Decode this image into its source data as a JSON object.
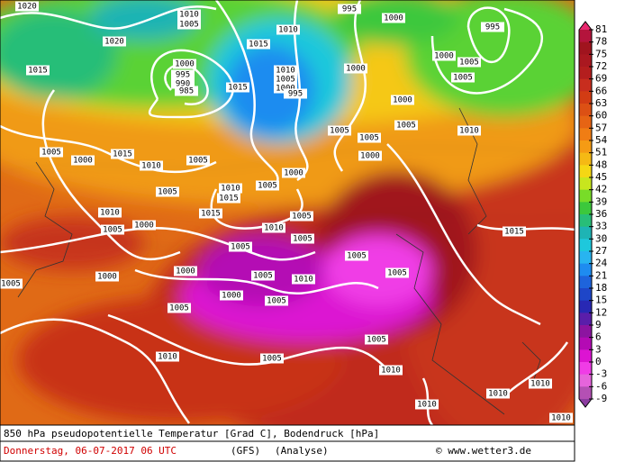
{
  "colorbar": {
    "levels": [
      81,
      78,
      75,
      72,
      69,
      66,
      63,
      60,
      57,
      54,
      51,
      48,
      45,
      42,
      39,
      36,
      33,
      30,
      27,
      24,
      21,
      18,
      15,
      12,
      9,
      6,
      3,
      0,
      -3,
      -6,
      -9
    ],
    "colors": [
      "#b4143c",
      "#a0141e",
      "#aa1820",
      "#b41e1e",
      "#c82d1e",
      "#d23c14",
      "#dc5014",
      "#e66414",
      "#f07d14",
      "#f59b14",
      "#f5b914",
      "#f5d714",
      "#c8e61e",
      "#78dc28",
      "#3cc83c",
      "#28be78",
      "#1eb4b4",
      "#1ec8dc",
      "#28b4f0",
      "#1e8cf0",
      "#1e64dc",
      "#1e46c8",
      "#2828b4",
      "#5a1eaa",
      "#8c14a0",
      "#b40ab4",
      "#dc14d2",
      "#f03ce6",
      "#e664dc",
      "#b450b4"
    ],
    "top_color": "#e8286e",
    "bottom_color": "#8c3ca0"
  },
  "isobar_labels": [
    1020,
    1010,
    1005,
    1010,
    995,
    1000,
    995,
    1020,
    1015,
    1015,
    1000,
    995,
    990,
    985,
    1015,
    1010,
    1005,
    1000,
    995,
    1000,
    1000,
    1005,
    1005,
    1000,
    1005,
    1005,
    1005,
    1010,
    1005,
    1000,
    1015,
    1010,
    1005,
    1000,
    1000,
    1005,
    1005,
    1010,
    1015,
    1015,
    1010,
    1005,
    1000,
    1010,
    1005,
    1005,
    1005,
    1005,
    1015,
    1000,
    1000,
    1005,
    1005,
    1010,
    1005,
    1000,
    1005,
    1005,
    1005,
    1010,
    1005,
    1010,
    1010,
    1010,
    1010,
    1010
  ],
  "footer": {
    "title": "850 hPa pseudopotentielle Temperatur [Grad C], Bodendruck [hPa]",
    "date": "Donnerstag, 06-07-2017  06 UTC",
    "model": "(GFS)",
    "run": "(Analyse)",
    "source": "© www.wetter3.de"
  }
}
